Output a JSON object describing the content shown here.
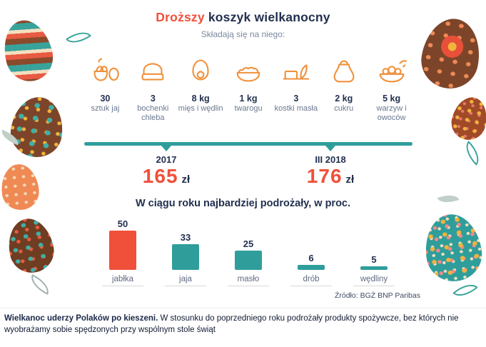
{
  "accent": {
    "red": "#f0503a",
    "teal": "#2f9e9b",
    "navy": "#22304f",
    "orange": "#f0913c"
  },
  "header": {
    "title_highlight": "Droższy",
    "title_rest": " koszyk wielkanocny",
    "subtitle": "Składają się na niego:"
  },
  "basket": {
    "items": [
      {
        "qty": "30",
        "label": "sztuk jaj",
        "icon": "eggs-icon"
      },
      {
        "qty": "3",
        "label": "bochenki chleba",
        "icon": "bread-icon"
      },
      {
        "qty": "8 kg",
        "label": "mięs i wędlin",
        "icon": "ham-icon"
      },
      {
        "qty": "1 kg",
        "label": "twarogu",
        "icon": "curd-bowl-icon"
      },
      {
        "qty": "3",
        "label": "kostki masła",
        "icon": "butter-icon"
      },
      {
        "qty": "2 kg",
        "label": "cukru",
        "icon": "sugar-bag-icon"
      },
      {
        "qty": "5 kg",
        "label": "warzyw i owoców",
        "icon": "produce-bowl-icon"
      }
    ]
  },
  "timeline": {
    "points": [
      {
        "period": "2017",
        "price": "165",
        "currency": "zł"
      },
      {
        "period": "III 2018",
        "price": "176",
        "currency": "zł"
      }
    ]
  },
  "chart_data": {
    "type": "bar",
    "title": "W ciągu roku najbardziej podrożały, w proc.",
    "categories": [
      "jabłka",
      "jaja",
      "masło",
      "drób",
      "wędliny"
    ],
    "values": [
      50,
      33,
      25,
      6,
      5
    ],
    "unit": "proc.",
    "colors": [
      "#f0503a",
      "#2f9e9b",
      "#2f9e9b",
      "#2f9e9b",
      "#2f9e9b"
    ],
    "xlabel": "",
    "ylabel": "",
    "ylim": [
      0,
      55
    ],
    "grid": false,
    "legend": false
  },
  "source": "Źródło: BGŻ BNP Paribas",
  "footer": {
    "lead": "Wielkanoc uderzy Polaków po kieszeni.",
    "text": " W stosunku do poprzedniego roku podrożały produkty spożywcze, bez których nie wyobrażamy sobie spędzonych przy wspólnym stole świąt"
  }
}
